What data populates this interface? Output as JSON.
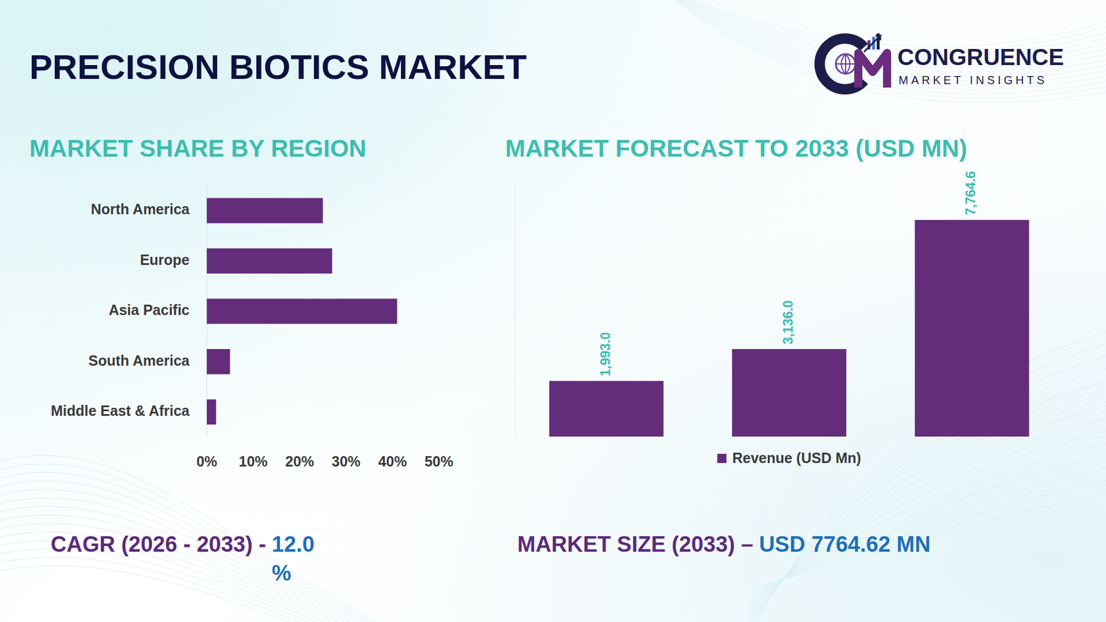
{
  "header": {
    "title": "PRECISION BIOTICS MARKET",
    "brand": "CONGRUENCE",
    "brand_tagline": "MARKET INSIGHTS"
  },
  "chart_data": [
    {
      "type": "bar",
      "title": "MARKET SHARE BY REGION",
      "orientation": "horizontal",
      "categories": [
        "North America",
        "Europe",
        "Asia Pacific",
        "South America",
        "Middle East & Africa"
      ],
      "values": [
        25,
        27,
        41,
        5,
        2
      ],
      "color": "#642d7b",
      "xlim": [
        0,
        50
      ],
      "xticks": [
        {
          "value": 0,
          "label": "0%"
        },
        {
          "value": 10,
          "label": "10%"
        },
        {
          "value": 20,
          "label": "20%"
        },
        {
          "value": 30,
          "label": "30%"
        },
        {
          "value": 40,
          "label": "40%"
        },
        {
          "value": 50,
          "label": "50%"
        }
      ],
      "grid": false
    },
    {
      "type": "bar",
      "title": "MARKET FORECAST TO 2033 (USD MN)",
      "categories": [
        null,
        null,
        null
      ],
      "series": [
        {
          "name": "Revenue (USD Mn)",
          "color": "#642d7b",
          "values": [
            1993.0,
            3136.0,
            7764.6
          ],
          "value_labels": [
            "1,993.0",
            "3,136.0",
            "7,764.6"
          ]
        }
      ],
      "ylim": [
        0,
        9000
      ],
      "data_labels": true,
      "tick_labels": false,
      "legend": "bottom",
      "grid": false
    }
  ],
  "kpis": [
    {
      "label": "CAGR (2026 - 2033) -",
      "value": "12.0 %"
    },
    {
      "label": "MARKET SIZE (2033) –",
      "value": "USD 7764.62 MN"
    }
  ]
}
